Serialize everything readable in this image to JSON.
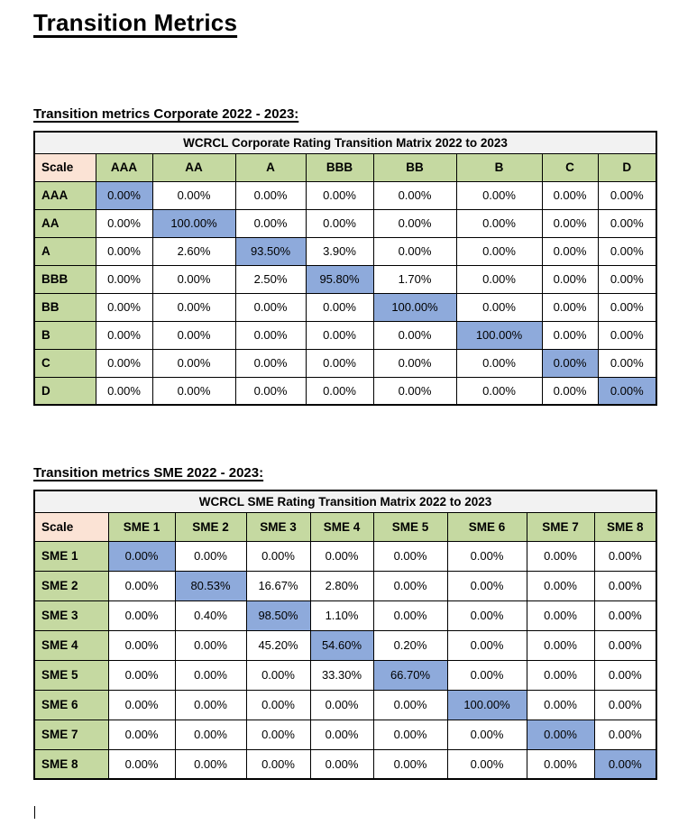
{
  "page": {
    "title": "Transition Metrics"
  },
  "colors": {
    "header_green": "#C5D9A1",
    "scale_peach": "#FBE3D5",
    "diagonal_blue": "#8EAADB",
    "title_gray": "#F2F2F2",
    "border_black": "#000000"
  },
  "corporate": {
    "heading": "Transition metrics Corporate 2022 - 2023:",
    "table_title": "WCRCL Corporate Rating Transition Matrix 2022 to 2023",
    "scale_label": "Scale",
    "columns": [
      "AAA",
      "AA",
      "A",
      "BBB",
      "BB",
      "B",
      "C",
      "D"
    ],
    "rows": [
      {
        "label": "AAA",
        "values": [
          "0.00%",
          "0.00%",
          "0.00%",
          "0.00%",
          "0.00%",
          "0.00%",
          "0.00%",
          "0.00%"
        ],
        "highlight": 0
      },
      {
        "label": "AA",
        "values": [
          "0.00%",
          "100.00%",
          "0.00%",
          "0.00%",
          "0.00%",
          "0.00%",
          "0.00%",
          "0.00%"
        ],
        "highlight": 1
      },
      {
        "label": "A",
        "values": [
          "0.00%",
          "2.60%",
          "93.50%",
          "3.90%",
          "0.00%",
          "0.00%",
          "0.00%",
          "0.00%"
        ],
        "highlight": 2
      },
      {
        "label": "BBB",
        "values": [
          "0.00%",
          "0.00%",
          "2.50%",
          "95.80%",
          "1.70%",
          "0.00%",
          "0.00%",
          "0.00%"
        ],
        "highlight": 3
      },
      {
        "label": "BB",
        "values": [
          "0.00%",
          "0.00%",
          "0.00%",
          "0.00%",
          "100.00%",
          "0.00%",
          "0.00%",
          "0.00%"
        ],
        "highlight": 4
      },
      {
        "label": "B",
        "values": [
          "0.00%",
          "0.00%",
          "0.00%",
          "0.00%",
          "0.00%",
          "100.00%",
          "0.00%",
          "0.00%"
        ],
        "highlight": 5
      },
      {
        "label": "C",
        "values": [
          "0.00%",
          "0.00%",
          "0.00%",
          "0.00%",
          "0.00%",
          "0.00%",
          "0.00%",
          "0.00%"
        ],
        "highlight": 6
      },
      {
        "label": "D",
        "values": [
          "0.00%",
          "0.00%",
          "0.00%",
          "0.00%",
          "0.00%",
          "0.00%",
          "0.00%",
          "0.00%"
        ],
        "highlight": 7
      }
    ]
  },
  "sme": {
    "heading": "Transition metrics SME 2022 - 2023:",
    "table_title": "WCRCL SME Rating Transition Matrix 2022 to 2023",
    "scale_label": "Scale",
    "columns": [
      "SME 1",
      "SME 2",
      "SME 3",
      "SME 4",
      "SME 5",
      "SME 6",
      "SME 7",
      "SME 8"
    ],
    "rows": [
      {
        "label": "SME 1",
        "values": [
          "0.00%",
          "0.00%",
          "0.00%",
          "0.00%",
          "0.00%",
          "0.00%",
          "0.00%",
          "0.00%"
        ],
        "highlight": 0
      },
      {
        "label": "SME 2",
        "values": [
          "0.00%",
          "80.53%",
          "16.67%",
          "2.80%",
          "0.00%",
          "0.00%",
          "0.00%",
          "0.00%"
        ],
        "highlight": 1
      },
      {
        "label": "SME 3",
        "values": [
          "0.00%",
          "0.40%",
          "98.50%",
          "1.10%",
          "0.00%",
          "0.00%",
          "0.00%",
          "0.00%"
        ],
        "highlight": 2
      },
      {
        "label": "SME 4",
        "values": [
          "0.00%",
          "0.00%",
          "45.20%",
          "54.60%",
          "0.20%",
          "0.00%",
          "0.00%",
          "0.00%"
        ],
        "highlight": 3
      },
      {
        "label": "SME 5",
        "values": [
          "0.00%",
          "0.00%",
          "0.00%",
          "33.30%",
          "66.70%",
          "0.00%",
          "0.00%",
          "0.00%"
        ],
        "highlight": 4
      },
      {
        "label": "SME 6",
        "values": [
          "0.00%",
          "0.00%",
          "0.00%",
          "0.00%",
          "0.00%",
          "100.00%",
          "0.00%",
          "0.00%"
        ],
        "highlight": 5
      },
      {
        "label": "SME 7",
        "values": [
          "0.00%",
          "0.00%",
          "0.00%",
          "0.00%",
          "0.00%",
          "0.00%",
          "0.00%",
          "0.00%"
        ],
        "highlight": 6
      },
      {
        "label": "SME 8",
        "values": [
          "0.00%",
          "0.00%",
          "0.00%",
          "0.00%",
          "0.00%",
          "0.00%",
          "0.00%",
          "0.00%"
        ],
        "highlight": 7
      }
    ]
  }
}
